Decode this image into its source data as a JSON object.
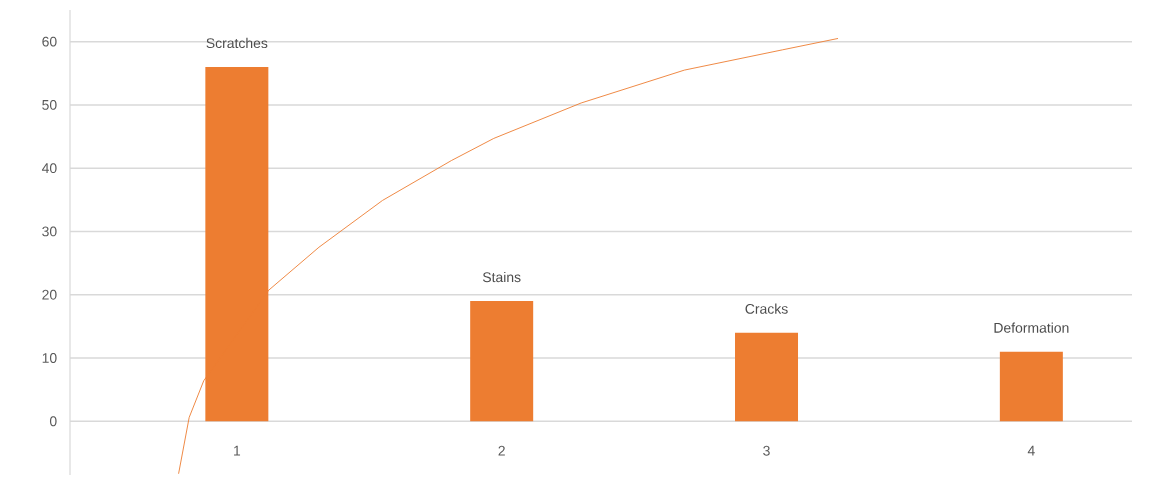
{
  "chart_data": {
    "type": "bar",
    "x": [
      1,
      2,
      3,
      4
    ],
    "xlim": [
      0.37,
      4.38
    ],
    "xticks": [
      1,
      2,
      3,
      4
    ],
    "ylim": [
      -8.5,
      65
    ],
    "yticks": [
      0,
      10,
      20,
      30,
      40,
      50,
      60
    ],
    "grid": "y",
    "series": [
      {
        "color": "#ed7d31",
        "values": [
          56,
          19,
          14,
          11
        ]
      },
      {
        "type": "line",
        "color": "#ed7d31",
        "x": [
          0.78,
          0.82,
          0.875,
          1.12,
          1.31,
          1.55,
          1.81,
          1.97,
          2.3,
          2.69,
          3.06,
          3.27
        ],
        "values": [
          -8.3,
          0.6,
          6.4,
          20.7,
          27.5,
          34.9,
          41.2,
          44.7,
          50.3,
          55.5,
          58.7,
          60.5
        ]
      }
    ],
    "annotations": [
      {
        "text": "Scratches",
        "x": 1,
        "y": 56
      },
      {
        "text": "Stains",
        "x": 2,
        "y": 19
      },
      {
        "text": "Cracks",
        "x": 3,
        "y": 14
      },
      {
        "text": "Deformation",
        "x": 4,
        "y": 11
      }
    ]
  }
}
